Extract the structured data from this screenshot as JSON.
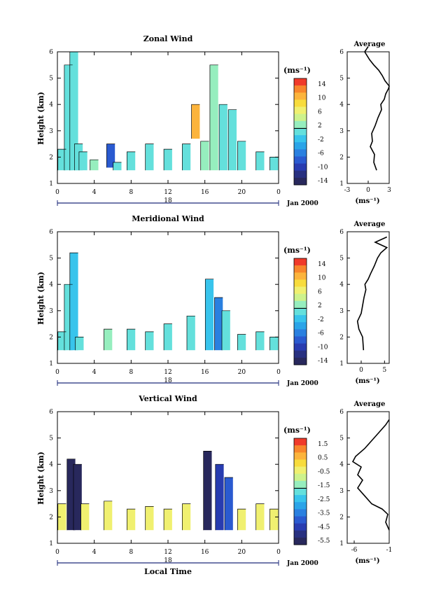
{
  "panels": [
    {
      "title": "Zonal Wind",
      "ylabel": "Height (km)",
      "yticks": [
        "1",
        "2",
        "3",
        "4",
        "5",
        "6"
      ],
      "xticks": [
        "0",
        "4",
        "8",
        "12",
        "16",
        "20",
        "0"
      ],
      "day_label": "18",
      "date_label": "Jan 2000",
      "colorbar_unit": "(ms⁻¹)",
      "colorbar_ticks": [
        "14",
        "10",
        "6",
        "2",
        "-2",
        "-6",
        "-10",
        "-14"
      ],
      "avg_title": "Average",
      "avg_xticks": [
        "-3",
        "0",
        "3"
      ],
      "avg_xlabel": "(ms⁻¹)"
    },
    {
      "title": "Meridional Wind",
      "ylabel": "Height (km)",
      "yticks": [
        "1",
        "2",
        "3",
        "4",
        "5",
        "6"
      ],
      "xticks": [
        "0",
        "4",
        "8",
        "12",
        "16",
        "20",
        "0"
      ],
      "day_label": "18",
      "date_label": "Jan 2000",
      "colorbar_unit": "(ms⁻¹)",
      "colorbar_ticks": [
        "14",
        "10",
        "6",
        "2",
        "-2",
        "-6",
        "-10",
        "-14"
      ],
      "avg_title": "Average",
      "avg_xticks": [
        "0",
        "5"
      ],
      "avg_xlabel": "(ms⁻¹)"
    },
    {
      "title": "Vertical Wind",
      "ylabel": "Height (km)",
      "yticks": [
        "1",
        "2",
        "3",
        "4",
        "5",
        "6"
      ],
      "xticks": [
        "0",
        "4",
        "8",
        "12",
        "16",
        "20",
        "0"
      ],
      "day_label": "18",
      "date_label": "Jan 2000",
      "xlabel": "Local Time",
      "colorbar_unit": "(ms⁻¹)",
      "colorbar_ticks": [
        "1.5",
        "0.5",
        "-0.5",
        "-1.5",
        "-2.5",
        "-3.5",
        "-4.5",
        "-5.5"
      ],
      "avg_title": "Average",
      "avg_xticks": [
        "-6",
        "-1"
      ],
      "avg_xlabel": "(ms⁻¹)"
    }
  ],
  "colors": {
    "colorbar": [
      "#f03a2a",
      "#f8862c",
      "#fcb43c",
      "#f8dc3c",
      "#f0f070",
      "#cdf28c",
      "#96eebe",
      "#64e0dc",
      "#38c4ec",
      "#2aa4e8",
      "#2a80e0",
      "#2a5ad0",
      "#283cb0",
      "#283080",
      "#28285c"
    ]
  },
  "chart_data": [
    {
      "type": "heatmap",
      "title": "Zonal Wind",
      "xlabel": "",
      "ylabel": "Height (km)",
      "xlim": [
        0,
        24
      ],
      "ylim": [
        1,
        6
      ],
      "colorbar_range": [
        -16,
        16
      ],
      "columns": [
        [
          0.5,
          1.5,
          2.3,
          0.5
        ],
        [
          1.2,
          1.5,
          5.5,
          0.0
        ],
        [
          1.8,
          1.5,
          6.0,
          -0.5
        ],
        [
          2.3,
          1.5,
          2.5,
          1.0
        ],
        [
          2.8,
          1.5,
          2.2,
          0.5
        ],
        [
          4.0,
          1.5,
          1.9,
          1.5
        ],
        [
          5.8,
          1.6,
          2.5,
          -9.0
        ],
        [
          6.5,
          1.5,
          1.8,
          0.5
        ],
        [
          8.0,
          1.5,
          2.2,
          1.0
        ],
        [
          10.0,
          1.5,
          2.5,
          1.0
        ],
        [
          12.0,
          1.5,
          2.3,
          1.0
        ],
        [
          14.0,
          1.5,
          2.5,
          0.5
        ],
        [
          15.0,
          2.7,
          4.0,
          11.0
        ],
        [
          16.0,
          1.5,
          2.6,
          1.5
        ],
        [
          17.0,
          1.5,
          5.5,
          3.0
        ],
        [
          18.0,
          1.5,
          4.0,
          1.0
        ],
        [
          19.0,
          1.5,
          3.8,
          0.5
        ],
        [
          20.0,
          1.5,
          2.6,
          0.5
        ],
        [
          22.0,
          1.5,
          2.2,
          1.0
        ],
        [
          23.5,
          1.5,
          2.0,
          0.5
        ]
      ],
      "average_profile": {
        "x": [
          1.2,
          0.8,
          0.9,
          0.3,
          0.6,
          0.5,
          1.0,
          1.4,
          1.9,
          1.8,
          2.3,
          2.5,
          2.9,
          3.0,
          2.4,
          2.0,
          1.5,
          0.8,
          0.2,
          -0.5,
          0.0
        ],
        "y": [
          1.5,
          1.8,
          2.1,
          2.4,
          2.6,
          2.9,
          3.2,
          3.5,
          3.8,
          4.0,
          4.2,
          4.4,
          4.6,
          4.7,
          4.9,
          5.1,
          5.3,
          5.5,
          5.7,
          6.0,
          6.2
        ],
        "xlim": [
          -3,
          3
        ]
      }
    },
    {
      "type": "heatmap",
      "title": "Meridional Wind",
      "xlabel": "",
      "ylabel": "Height (km)",
      "xlim": [
        0,
        24
      ],
      "ylim": [
        1,
        6
      ],
      "colorbar_range": [
        -16,
        16
      ],
      "columns": [
        [
          0.5,
          1.5,
          2.2,
          1.0
        ],
        [
          1.2,
          1.5,
          4.0,
          -1.0
        ],
        [
          1.8,
          1.5,
          5.2,
          -3.0
        ],
        [
          2.4,
          1.5,
          2.0,
          0.5
        ],
        [
          5.5,
          1.5,
          2.3,
          1.5
        ],
        [
          8.0,
          1.5,
          2.3,
          1.0
        ],
        [
          10.0,
          1.5,
          2.2,
          1.0
        ],
        [
          12.0,
          1.5,
          2.5,
          1.0
        ],
        [
          14.5,
          1.5,
          2.8,
          0.5
        ],
        [
          16.5,
          1.5,
          4.2,
          -2.0
        ],
        [
          17.5,
          1.5,
          3.5,
          -6.0
        ],
        [
          18.3,
          1.5,
          3.0,
          0.5
        ],
        [
          20.0,
          1.5,
          2.1,
          1.0
        ],
        [
          22.0,
          1.5,
          2.2,
          1.0
        ],
        [
          23.5,
          1.5,
          2.0,
          0.5
        ]
      ],
      "average_profile": {
        "x": [
          0.5,
          0.3,
          -0.5,
          -0.8,
          0.0,
          0.3,
          0.6,
          1.0,
          0.8,
          1.5,
          2.0,
          2.8,
          3.5,
          4.2,
          5.5,
          3.0,
          5.5
        ],
        "y": [
          1.5,
          2.0,
          2.3,
          2.6,
          2.9,
          3.2,
          3.5,
          3.8,
          4.0,
          4.2,
          4.4,
          4.7,
          5.0,
          5.2,
          5.4,
          5.6,
          5.8
        ],
        "xlim": [
          -3,
          6
        ]
      }
    },
    {
      "type": "heatmap",
      "title": "Vertical Wind",
      "xlabel": "Local Time",
      "ylabel": "Height (km)",
      "xlim": [
        0,
        24
      ],
      "ylim": [
        1,
        6
      ],
      "colorbar_range": [
        -6,
        2
      ],
      "columns": [
        [
          0.5,
          1.5,
          2.5,
          -0.5
        ],
        [
          1.5,
          1.5,
          4.2,
          -5.8
        ],
        [
          2.2,
          1.5,
          4.0,
          -5.8
        ],
        [
          3.0,
          1.5,
          2.5,
          -0.5
        ],
        [
          5.5,
          1.5,
          2.6,
          -0.3
        ],
        [
          8.0,
          1.5,
          2.3,
          -0.5
        ],
        [
          10.0,
          1.5,
          2.4,
          -0.3
        ],
        [
          12.0,
          1.5,
          2.3,
          -0.5
        ],
        [
          14.0,
          1.5,
          2.5,
          -0.4
        ],
        [
          16.3,
          1.5,
          4.5,
          -5.5
        ],
        [
          17.6,
          1.5,
          4.0,
          -4.5
        ],
        [
          18.6,
          1.5,
          3.5,
          -4.0
        ],
        [
          20.0,
          1.5,
          2.3,
          -0.5
        ],
        [
          22.0,
          1.5,
          2.5,
          -0.5
        ],
        [
          23.5,
          1.5,
          2.3,
          -0.5
        ]
      ],
      "average_profile": {
        "x": [
          -1.0,
          -1.5,
          -1.2,
          -2.0,
          -3.5,
          -4.5,
          -5.5,
          -4.8,
          -5.5,
          -5.0,
          -6.2,
          -5.8,
          -4.5,
          -3.5,
          -2.5,
          -1.5,
          -1.0
        ],
        "y": [
          1.5,
          1.8,
          2.1,
          2.3,
          2.5,
          2.8,
          3.1,
          3.4,
          3.6,
          3.9,
          4.1,
          4.3,
          4.6,
          4.9,
          5.2,
          5.5,
          5.7
        ],
        "xlim": [
          -7,
          -1
        ]
      }
    }
  ]
}
